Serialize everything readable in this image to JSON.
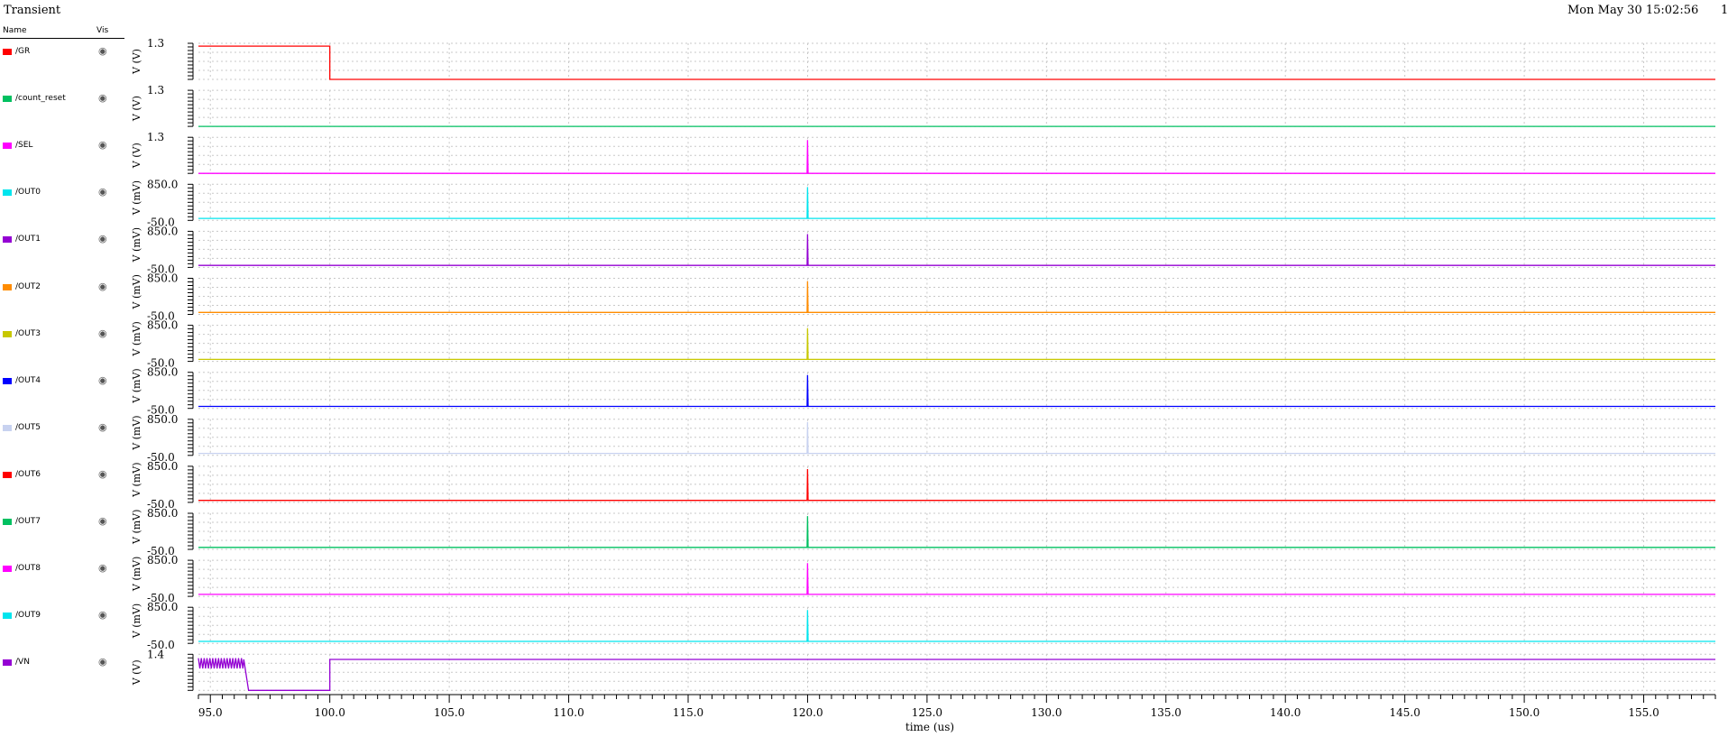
{
  "header": {
    "title": "Transient",
    "date": "Mon May 30 15:02:56",
    "page_number": "1"
  },
  "legend": {
    "name_header": "Name",
    "vis_header": "Vis",
    "eye_glyph": "◉",
    "eye_icon": "eye-icon"
  },
  "chart_data": {
    "type": "line",
    "xlabel": "time (us)",
    "xlim": [
      94.5,
      158.0
    ],
    "xticks": [
      "95.0",
      "100.0",
      "105.0",
      "110.0",
      "115.0",
      "120.0",
      "125.0",
      "130.0",
      "135.0",
      "140.0",
      "145.0",
      "150.0",
      "155.0"
    ],
    "grid": true,
    "series": [
      {
        "name": "/GR",
        "color": "#ff0000",
        "ylabel": "V (V)",
        "ytop": "1.3",
        "ybottom": "",
        "ylim": [
          0,
          1.3
        ],
        "points": [
          [
            94.5,
            1.2
          ],
          [
            100.0,
            1.2
          ],
          [
            100.0,
            0.0
          ],
          [
            158.0,
            0.0
          ]
        ]
      },
      {
        "name": "/count_reset",
        "color": "#00c060",
        "ylabel": "V (V)",
        "ytop": "1.3",
        "ybottom": "",
        "ylim": [
          0,
          1.3
        ],
        "points": [
          [
            94.5,
            0.0
          ],
          [
            158.0,
            0.0
          ]
        ]
      },
      {
        "name": "/SEL",
        "color": "#ff00ff",
        "ylabel": "V (V)",
        "ytop": "1.3",
        "ybottom": "",
        "ylim": [
          0,
          1.3
        ],
        "points": [
          [
            94.5,
            0.0
          ],
          [
            119.98,
            0.0
          ],
          [
            120.0,
            1.2
          ],
          [
            120.02,
            0.0
          ],
          [
            158.0,
            0.0
          ]
        ]
      },
      {
        "name": "/OUT0",
        "color": "#00e5ee",
        "ylabel": "V (mV)",
        "ytop": "850.0",
        "ybottom": "-50.0",
        "ylim": [
          -50,
          850
        ],
        "points": [
          [
            94.5,
            0.0
          ],
          [
            119.98,
            0.0
          ],
          [
            120.0,
            780.0
          ],
          [
            120.02,
            0.0
          ],
          [
            158.0,
            0.0
          ]
        ]
      },
      {
        "name": "/OUT1",
        "color": "#9400d3",
        "ylabel": "V (mV)",
        "ytop": "850.0",
        "ybottom": "-50.0",
        "ylim": [
          -50,
          850
        ],
        "points": [
          [
            94.5,
            0.0
          ],
          [
            119.98,
            0.0
          ],
          [
            120.0,
            780.0
          ],
          [
            120.02,
            0.0
          ],
          [
            158.0,
            0.0
          ]
        ]
      },
      {
        "name": "/OUT2",
        "color": "#ff8c00",
        "ylabel": "V (mV)",
        "ytop": "850.0",
        "ybottom": "-50.0",
        "ylim": [
          -50,
          850
        ],
        "points": [
          [
            94.5,
            0.0
          ],
          [
            119.98,
            0.0
          ],
          [
            120.0,
            780.0
          ],
          [
            120.02,
            0.0
          ],
          [
            158.0,
            0.0
          ]
        ]
      },
      {
        "name": "/OUT3",
        "color": "#c8c800",
        "ylabel": "V (mV)",
        "ytop": "850.0",
        "ybottom": "-50.0",
        "ylim": [
          -50,
          850
        ],
        "points": [
          [
            94.5,
            0.0
          ],
          [
            119.98,
            0.0
          ],
          [
            120.0,
            780.0
          ],
          [
            120.02,
            0.0
          ],
          [
            158.0,
            0.0
          ]
        ]
      },
      {
        "name": "/OUT4",
        "color": "#0000ff",
        "ylabel": "V (mV)",
        "ytop": "850.0",
        "ybottom": "-50.0",
        "ylim": [
          -50,
          850
        ],
        "points": [
          [
            94.5,
            0.0
          ],
          [
            119.98,
            0.0
          ],
          [
            120.0,
            780.0
          ],
          [
            120.02,
            0.0
          ],
          [
            158.0,
            0.0
          ]
        ]
      },
      {
        "name": "/OUT5",
        "color": "#c8d2f0",
        "ylabel": "V (mV)",
        "ytop": "850.0",
        "ybottom": "-50.0",
        "ylim": [
          -50,
          850
        ],
        "points": [
          [
            94.5,
            0.0
          ],
          [
            119.98,
            0.0
          ],
          [
            120.0,
            780.0
          ],
          [
            120.02,
            0.0
          ],
          [
            158.0,
            0.0
          ]
        ]
      },
      {
        "name": "/OUT6",
        "color": "#ff0000",
        "ylabel": "V (mV)",
        "ytop": "850.0",
        "ybottom": "-50.0",
        "ylim": [
          -50,
          850
        ],
        "points": [
          [
            94.5,
            0.0
          ],
          [
            119.98,
            0.0
          ],
          [
            120.0,
            780.0
          ],
          [
            120.02,
            0.0
          ],
          [
            158.0,
            0.0
          ]
        ]
      },
      {
        "name": "/OUT7",
        "color": "#00c060",
        "ylabel": "V (mV)",
        "ytop": "850.0",
        "ybottom": "-50.0",
        "ylim": [
          -50,
          850
        ],
        "points": [
          [
            94.5,
            0.0
          ],
          [
            119.98,
            0.0
          ],
          [
            120.0,
            780.0
          ],
          [
            120.02,
            0.0
          ],
          [
            158.0,
            0.0
          ]
        ]
      },
      {
        "name": "/OUT8",
        "color": "#ff00ff",
        "ylabel": "V (mV)",
        "ytop": "850.0",
        "ybottom": "-50.0",
        "ylim": [
          -50,
          850
        ],
        "points": [
          [
            94.5,
            0.0
          ],
          [
            119.98,
            0.0
          ],
          [
            120.0,
            780.0
          ],
          [
            120.02,
            0.0
          ],
          [
            158.0,
            0.0
          ]
        ]
      },
      {
        "name": "/OUT9",
        "color": "#00e5ee",
        "ylabel": "V (mV)",
        "ytop": "850.0",
        "ybottom": "-50.0",
        "ylim": [
          -50,
          850
        ],
        "points": [
          [
            94.5,
            0.0
          ],
          [
            119.98,
            0.0
          ],
          [
            120.0,
            780.0
          ],
          [
            120.02,
            0.0
          ],
          [
            158.0,
            0.0
          ]
        ]
      },
      {
        "name": "/VN",
        "color": "#9400d3",
        "ylabel": "V (V)",
        "ytop": "1.4",
        "ybottom": "",
        "ylim": [
          0,
          1.4
        ],
        "points": [
          [
            94.5,
            1.2
          ],
          [
            100.0,
            1.2
          ]
        ],
        "ripple": {
          "x0": 94.5,
          "x1": 96.4,
          "period": 0.12,
          "hi": 1.25,
          "lo": 0.85
        },
        "segment_points": [
          [
            96.4,
            1.2
          ],
          [
            96.6,
            0.0
          ],
          [
            100.0,
            0.0
          ],
          [
            100.0,
            1.2
          ],
          [
            158.0,
            1.2
          ]
        ]
      }
    ]
  }
}
